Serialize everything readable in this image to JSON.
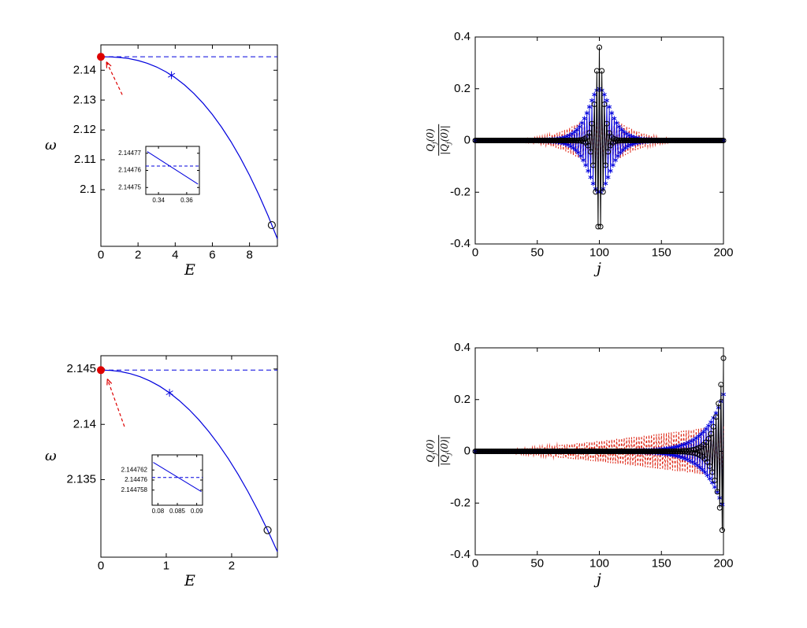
{
  "figure": {
    "background": "#ffffff"
  },
  "chart_data": [
    {
      "id": "top_left",
      "type": "line",
      "title": "",
      "xlabel": "E",
      "ylabel": "ω",
      "xlim": [
        0,
        9.5
      ],
      "ylim": [
        2.081,
        2.1485
      ],
      "xticks": [
        0,
        2,
        4,
        6,
        8
      ],
      "yticks": [
        2.1,
        2.11,
        2.12,
        2.13,
        2.14
      ],
      "curve": {
        "color": "#0000dd",
        "x": [
          0,
          0.5,
          1,
          1.5,
          2,
          2.5,
          3,
          3.5,
          4,
          4.5,
          5,
          5.5,
          6,
          6.5,
          7,
          7.5,
          8,
          8.5,
          9,
          9.5
        ],
        "y": [
          2.1445,
          2.14446,
          2.14428,
          2.1439,
          2.14326,
          2.14233,
          2.14108,
          2.13947,
          2.13748,
          2.13508,
          2.13224,
          2.12894,
          2.12517,
          2.12088,
          2.11607,
          2.11072,
          2.1048,
          2.09831,
          2.09121,
          2.0835
        ]
      },
      "dashed_line": {
        "y": 2.1445,
        "color": "#0000dd"
      },
      "markers": [
        {
          "shape": "filled-circle",
          "x": 0,
          "y": 2.1445,
          "color": "#dd0000",
          "size": 5
        },
        {
          "shape": "asterisk",
          "x": 3.8,
          "y": 2.1383,
          "color": "#0000dd",
          "size": 5
        },
        {
          "shape": "open-circle",
          "x": 9.2,
          "y": 2.0881,
          "color": "#111111",
          "size": 4.5
        }
      ],
      "arrow": {
        "x1": 1.15,
        "y1": 2.1318,
        "x2": 0.3,
        "y2": 2.1428,
        "color": "#dd0000"
      },
      "inset": {
        "xlim": [
          0.331,
          0.369
        ],
        "ylim": [
          2.144746,
          2.144774
        ],
        "xticks": [
          0.34,
          0.36
        ],
        "yticks": [
          2.14475,
          2.14476,
          2.14477
        ],
        "line": {
          "x": [
            0.332,
            0.368
          ],
          "y": [
            2.144771,
            2.144752
          ],
          "color": "#0000dd"
        },
        "dashed_line": {
          "y": 2.1447625,
          "color": "#0000dd"
        }
      }
    },
    {
      "id": "top_right",
      "type": "profile",
      "title": "",
      "xlabel": "j",
      "ylabel_num": {
        "pre": "Q",
        "sub": "j",
        "post": "(0)"
      },
      "ylabel_den": {
        "pre": "|Q",
        "sub": "j",
        "post": "(0)|"
      },
      "xlim": [
        0,
        200
      ],
      "ylim": [
        -0.4,
        0.4
      ],
      "xticks": [
        0,
        50,
        100,
        150,
        200
      ],
      "yticks": [
        -0.4,
        -0.2,
        0,
        0.2,
        0.4
      ],
      "n": 201,
      "series": [
        {
          "name": "wide-red-dashed",
          "color": "#dd2211",
          "style": "dashed-line",
          "amplitude": 0.1,
          "envelope": "sech",
          "center": 100,
          "width": 18,
          "staggered": true
        },
        {
          "name": "medium-blue-asterisks",
          "color": "#0000dd",
          "style": "line-asterisk",
          "amplitude": 0.2,
          "envelope": "sech",
          "center": 100,
          "width": 8,
          "staggered": true
        },
        {
          "name": "narrow-black-circles",
          "color": "#000000",
          "style": "line-circle",
          "amplitude": 0.36,
          "envelope": "sech",
          "center": 100,
          "width": 2.5,
          "staggered": true
        }
      ]
    },
    {
      "id": "bottom_left",
      "type": "line",
      "title": "",
      "xlabel": "E",
      "ylabel": "ω",
      "xlim": [
        0,
        2.7
      ],
      "ylim": [
        2.128,
        2.1462
      ],
      "xticks": [
        0,
        1,
        2
      ],
      "yticks": [
        2.135,
        2.14,
        2.145
      ],
      "curve": {
        "color": "#0000dd",
        "x": [
          0,
          0.15,
          0.3,
          0.45,
          0.6,
          0.75,
          0.9,
          1.05,
          1.2,
          1.35,
          1.5,
          1.65,
          1.8,
          1.95,
          2.1,
          2.25,
          2.4,
          2.55,
          2.7
        ],
        "y": [
          2.1449,
          2.14487,
          2.14477,
          2.14458,
          2.1443,
          2.14392,
          2.14344,
          2.14285,
          2.14214,
          2.14133,
          2.1404,
          2.13935,
          2.13818,
          2.13689,
          2.13547,
          2.13392,
          2.13224,
          2.13044,
          2.1285
        ]
      },
      "dashed_line": {
        "y": 2.1449,
        "color": "#0000dd"
      },
      "markers": [
        {
          "shape": "filled-circle",
          "x": 0,
          "y": 2.1449,
          "color": "#dd0000",
          "size": 5
        },
        {
          "shape": "asterisk",
          "x": 1.05,
          "y": 2.14285,
          "color": "#0000dd",
          "size": 5
        },
        {
          "shape": "open-circle",
          "x": 2.55,
          "y": 2.13044,
          "color": "#111111",
          "size": 4.5
        }
      ],
      "arrow": {
        "x1": 0.36,
        "y1": 2.1398,
        "x2": 0.1,
        "y2": 2.1441,
        "color": "#dd0000"
      },
      "inset": {
        "xlim": [
          0.0785,
          0.0915
        ],
        "ylim": [
          2.144755,
          2.144765
        ],
        "xticks": [
          0.08,
          0.085,
          0.09
        ],
        "yticks": [
          2.144758,
          2.14476,
          2.144762
        ],
        "line": {
          "x": [
            0.0788,
            0.0912
          ],
          "y": [
            2.1447635,
            2.1447577
          ],
          "color": "#0000dd"
        },
        "dashed_line": {
          "y": 2.1447605,
          "color": "#0000dd"
        }
      }
    },
    {
      "id": "bottom_right",
      "type": "profile",
      "title": "",
      "xlabel": "j",
      "ylabel_num": {
        "pre": "Q",
        "sub": "j",
        "post": "(0)"
      },
      "ylabel_den": {
        "pre": "|Q",
        "sub": "j",
        "post": "(0)|"
      },
      "xlim": [
        0,
        200
      ],
      "ylim": [
        -0.4,
        0.4
      ],
      "xticks": [
        0,
        50,
        100,
        150,
        200
      ],
      "yticks": [
        -0.4,
        -0.2,
        0,
        0.2,
        0.4
      ],
      "n": 201,
      "series": [
        {
          "name": "wide-red-dashed",
          "color": "#dd2211",
          "style": "dashed-line",
          "amplitude": 0.1,
          "envelope": "edge-power",
          "power": 1.3,
          "staggered": true
        },
        {
          "name": "medium-blue-asterisks",
          "color": "#0000dd",
          "style": "line-asterisk",
          "amplitude": 0.22,
          "envelope": "edge-exp",
          "width": 15,
          "staggered": true
        },
        {
          "name": "narrow-black-circles",
          "color": "#000000",
          "style": "line-circle",
          "amplitude": 0.36,
          "envelope": "edge-exp",
          "width": 6,
          "staggered": true
        }
      ]
    }
  ]
}
